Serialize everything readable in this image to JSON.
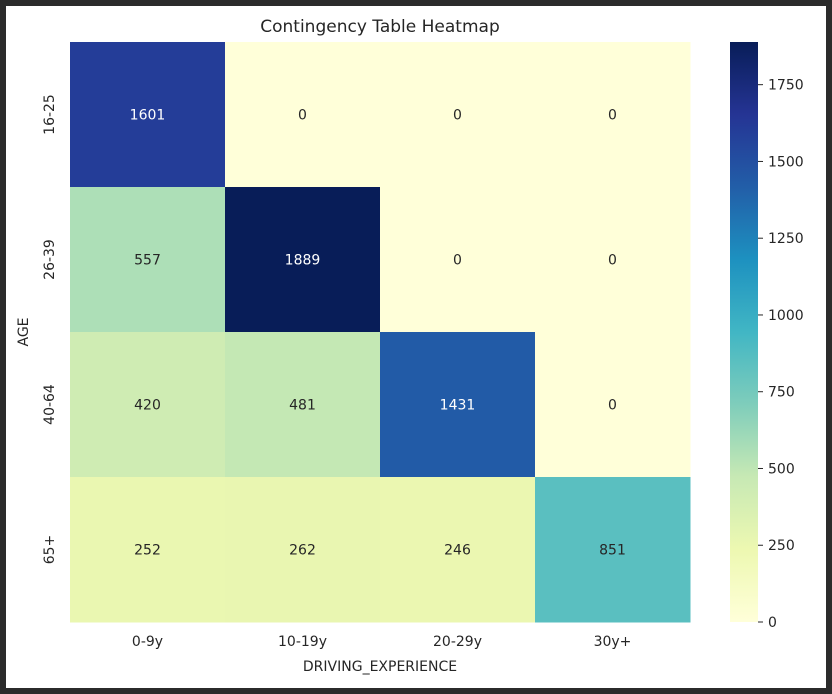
{
  "chart_data": {
    "type": "heatmap",
    "title": "Contingency Table Heatmap",
    "xlabel": "DRIVING_EXPERIENCE",
    "ylabel": "AGE",
    "x_categories": [
      "0-9y",
      "10-19y",
      "20-29y",
      "30y+"
    ],
    "y_categories": [
      "16-25",
      "26-39",
      "40-64",
      "65+"
    ],
    "values": [
      [
        1601,
        0,
        0,
        0
      ],
      [
        557,
        1889,
        0,
        0
      ],
      [
        420,
        481,
        1431,
        0
      ],
      [
        252,
        262,
        246,
        851
      ]
    ],
    "colormap": "YlGnBu",
    "color_range": [
      0,
      1889
    ],
    "colorbar_ticks": [
      0,
      250,
      500,
      750,
      1000,
      1250,
      1500,
      1750
    ],
    "annotations": true
  }
}
